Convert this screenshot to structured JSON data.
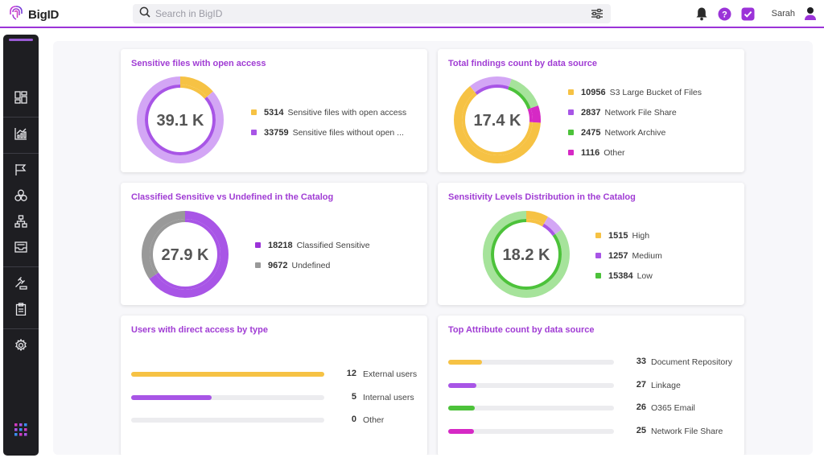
{
  "app": {
    "name": "BigID",
    "user": "Sarah"
  },
  "search": {
    "placeholder": "Search in BigID"
  },
  "colors": {
    "accent": "#9b33d8",
    "yellow": "#f6c244",
    "purple": "#a855e6",
    "green": "#4cc23a",
    "magenta": "#d629c5",
    "gray": "#999999",
    "lightpurple": "#d3a6f5",
    "lightgreen": "#a6e39b"
  },
  "sidebar": {
    "items": [
      "dashboard-icon",
      "analytics-icon",
      "flag-icon",
      "circles-icon",
      "hierarchy-icon",
      "inbox-icon",
      "gavel-icon",
      "clipboard-icon",
      "gear-icon"
    ]
  },
  "cards": {
    "open_access": {
      "title": "Sensitive files with open access",
      "center": "39.1 K",
      "items": [
        {
          "value": 5314,
          "label": "Sensitive files with open access"
        },
        {
          "value": 33759,
          "label": "Sensitive files without open ..."
        }
      ]
    },
    "findings": {
      "title": "Total findings count by data source",
      "center": "17.4 K",
      "items": [
        {
          "value": 10956,
          "label": "S3 Large Bucket of Files"
        },
        {
          "value": 2837,
          "label": "Network File Share"
        },
        {
          "value": 2475,
          "label": "Network Archive"
        },
        {
          "value": 1116,
          "label": "Other"
        }
      ]
    },
    "classified": {
      "title": "Classified Sensitive vs Undefined in the Catalog",
      "center": "27.9 K",
      "items": [
        {
          "value": 18218,
          "label": "Classified Sensitive"
        },
        {
          "value": 9672,
          "label": "Undefined"
        }
      ]
    },
    "levels": {
      "title": "Sensitivity Levels Distribution in the Catalog",
      "center": "18.2 K",
      "items": [
        {
          "value": 1515,
          "label": "High"
        },
        {
          "value": 1257,
          "label": "Medium"
        },
        {
          "value": 15384,
          "label": "Low"
        }
      ]
    },
    "users": {
      "title": "Users with direct access by type",
      "max": 12,
      "items": [
        {
          "value": 12,
          "label": "External users"
        },
        {
          "value": 5,
          "label": "Internal users"
        },
        {
          "value": 0,
          "label": "Other"
        }
      ]
    },
    "attributes": {
      "title": "Top Attribute count by data source",
      "max": 160,
      "items": [
        {
          "value": 33,
          "label": "Document Repository"
        },
        {
          "value": 27,
          "label": "Linkage"
        },
        {
          "value": 26,
          "label": "O365 Email"
        },
        {
          "value": 25,
          "label": "Network File Share"
        }
      ]
    }
  }
}
